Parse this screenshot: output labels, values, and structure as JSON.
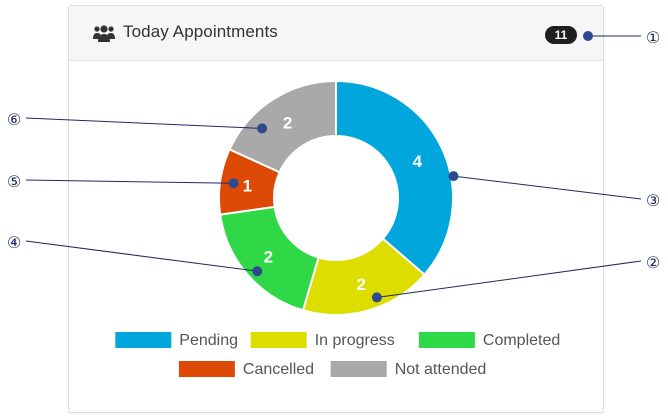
{
  "header": {
    "title": "Today Appointments",
    "icon": "users-icon",
    "count": "11"
  },
  "colors": {
    "pending": "#00a6dc",
    "in_progress": "#dedd00",
    "completed": "#2fd846",
    "cancelled": "#dc4a05",
    "not_attended": "#a9a9a9",
    "callout": "#1c2a5e"
  },
  "chart_data": {
    "type": "pie",
    "categories": [
      "Pending",
      "In progress",
      "Completed",
      "Cancelled",
      "Not attended"
    ],
    "values": [
      4,
      2,
      2,
      1,
      2
    ],
    "colors": [
      "#00a6dc",
      "#dedd00",
      "#2fd846",
      "#dc4a05",
      "#a9a9a9"
    ],
    "donut": true,
    "legend": "bottom"
  },
  "callouts": [
    "①",
    "②",
    "③",
    "④",
    "⑤",
    "⑥"
  ]
}
